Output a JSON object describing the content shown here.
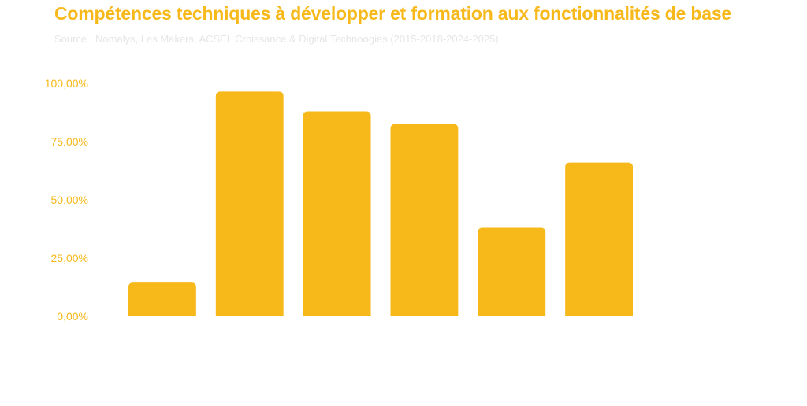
{
  "chart_data": {
    "type": "bar",
    "title": "Compétences techniques à développer et formation aux fonctionnalités de base",
    "subtitle": "Source : Nomalys, Les Makers, ACSEL Croissance & Digital Technoogies (2015-2018-2024-2025)",
    "categories": [
      "",
      "",
      "",
      "",
      "",
      ""
    ],
    "values": [
      14.5,
      96.5,
      88,
      82.5,
      38,
      66
    ],
    "ylim": [
      0,
      100
    ],
    "yticks": [
      0,
      25,
      50,
      75,
      100
    ],
    "ytick_labels": [
      "0,00%",
      "25,00%",
      "50,00%",
      "75,00%",
      "100,00%"
    ],
    "bar_color": "#f7b91a",
    "grid": false,
    "legend": "none"
  }
}
